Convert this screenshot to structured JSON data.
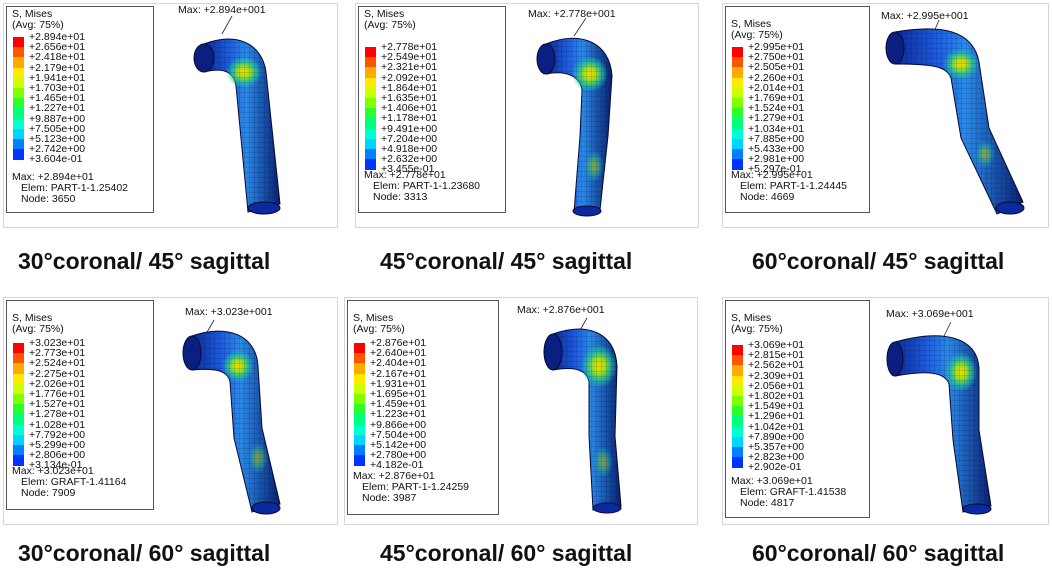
{
  "palette": [
    "#ff0000",
    "#ff5500",
    "#ffaa00",
    "#ffea00",
    "#ccff00",
    "#7fff00",
    "#2bff2b",
    "#00ff80",
    "#00ffd5",
    "#00d5ff",
    "#0080ff",
    "#0033ff",
    "#0000ff"
  ],
  "panels": [
    {
      "caption": "30°coronal/ 45° sagittal",
      "title": "S, Mises",
      "avg": "(Avg: 75%)",
      "values": [
        "+2.894e+01",
        "+2.656e+01",
        "+2.418e+01",
        "+2.179e+01",
        "+1.941e+01",
        "+1.703e+01",
        "+1.465e+01",
        "+1.227e+01",
        "+9.887e+00",
        "+7.505e+00",
        "+5.123e+00",
        "+2.742e+00",
        "+3.604e-01"
      ],
      "max": "Max: +2.894e+01",
      "elem": "Elem: PART-1-1.25402",
      "node": "Node: 3650",
      "max_label": "Max: +2.894e+001"
    },
    {
      "caption": "45°coronal/ 45° sagittal",
      "title": "S, Mises",
      "avg": "(Avg: 75%)",
      "values": [
        "+2.778e+01",
        "+2.549e+01",
        "+2.321e+01",
        "+2.092e+01",
        "+1.864e+01",
        "+1.635e+01",
        "+1.406e+01",
        "+1.178e+01",
        "+9.491e+00",
        "+7.204e+00",
        "+4.918e+00",
        "+2.632e+00",
        "+3.455e-01"
      ],
      "max": "Max: +2.778e+01",
      "elem": "Elem: PART-1-1.23680",
      "node": "Node: 3313",
      "max_label": "Max: +2.778e+001"
    },
    {
      "caption": "60°coronal/ 45° sagittal",
      "title": "S, Mises",
      "avg": "(Avg: 75%)",
      "values": [
        "+2.995e+01",
        "+2.750e+01",
        "+2.505e+01",
        "+2.260e+01",
        "+2.014e+01",
        "+1.769e+01",
        "+1.524e+01",
        "+1.279e+01",
        "+1.034e+01",
        "+7.885e+00",
        "+5.433e+00",
        "+2.981e+00",
        "+5.297e-01"
      ],
      "max": "Max: +2.995e+01",
      "elem": "Elem: PART-1-1.24445",
      "node": "Node: 4669",
      "max_label": "Max: +2.995e+001"
    },
    {
      "caption": "30°coronal/ 60° sagittal",
      "title": "S, Mises",
      "avg": "(Avg: 75%)",
      "values": [
        "+3.023e+01",
        "+2.773e+01",
        "+2.524e+01",
        "+2.275e+01",
        "+2.026e+01",
        "+1.776e+01",
        "+1.527e+01",
        "+1.278e+01",
        "+1.028e+01",
        "+7.792e+00",
        "+5.299e+00",
        "+2.806e+00",
        "+3.134e-01"
      ],
      "max": "Max: +3.023e+01",
      "elem": "Elem: GRAFT-1.41164",
      "node": "Node: 7909",
      "max_label": "Max: +3.023e+001"
    },
    {
      "caption": "45°coronal/ 60° sagittal",
      "title": "S, Mises",
      "avg": "(Avg: 75%)",
      "values": [
        "+2.876e+01",
        "+2.640e+01",
        "+2.404e+01",
        "+2.167e+01",
        "+1.931e+01",
        "+1.695e+01",
        "+1.459e+01",
        "+1.223e+01",
        "+9.866e+00",
        "+7.504e+00",
        "+5.142e+00",
        "+2.780e+00",
        "+4.182e-01"
      ],
      "max": "Max: +2.876e+01",
      "elem": "Elem: PART-1-1.24259",
      "node": "Node: 3987",
      "max_label": "Max: +2.876e+001"
    },
    {
      "caption": "60°coronal/ 60° sagittal",
      "title": "S, Mises",
      "avg": "(Avg: 75%)",
      "values": [
        "+3.069e+01",
        "+2.815e+01",
        "+2.562e+01",
        "+2.309e+01",
        "+2.056e+01",
        "+1.802e+01",
        "+1.549e+01",
        "+1.296e+01",
        "+1.042e+01",
        "+7.890e+00",
        "+5.357e+00",
        "+2.823e+00",
        "+2.902e-01"
      ],
      "max": "Max: +3.069e+01",
      "elem": "Elem: GRAFT-1.41538",
      "node": "Node: 4817",
      "max_label": "Max: +3.069e+001"
    }
  ]
}
